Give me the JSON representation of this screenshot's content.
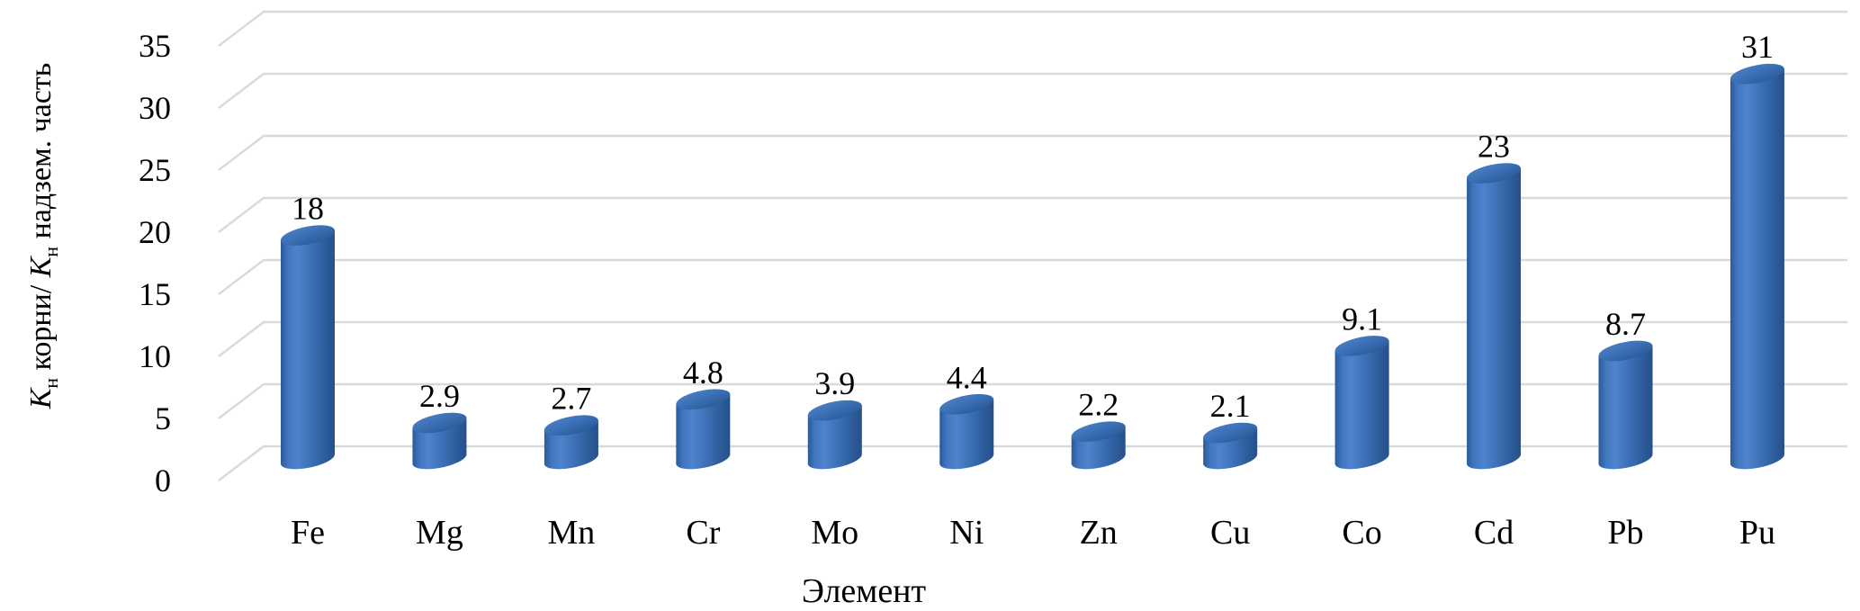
{
  "chart_data": {
    "type": "bar",
    "subtype": "cylinder-3d",
    "title": "",
    "xlabel": "Элемент",
    "ylabel": "Кн корни/ Кн надзем. часть",
    "ylabel_parts": {
      "k1": "К",
      "sub1": "н",
      "mid": " корни/ ",
      "k2": "К",
      "sub2": "н",
      "tail": " надзем. часть"
    },
    "categories": [
      "Fe",
      "Mg",
      "Mn",
      "Cr",
      "Mo",
      "Ni",
      "Zn",
      "Cu",
      "Co",
      "Cd",
      "Pb",
      "Pu"
    ],
    "values": [
      18,
      2.9,
      2.7,
      4.8,
      3.9,
      4.4,
      2.2,
      2.1,
      9.1,
      23,
      8.7,
      31
    ],
    "value_labels": [
      "18",
      "2.9",
      "2.7",
      "4.8",
      "3.9",
      "4.4",
      "2.2",
      "2.1",
      "9.1",
      "23",
      "8.7",
      "31"
    ],
    "y_ticks": [
      0,
      5,
      10,
      15,
      20,
      25,
      30,
      35
    ],
    "ylim": [
      0,
      35
    ],
    "grid": true,
    "legend": false,
    "colors": {
      "bar_main": "#3A6FB5",
      "bar_light": "#4F83CC",
      "bar_dark": "#26508A",
      "grid_line": "#D9D9D9",
      "text": "#000000",
      "background": "#FFFFFF"
    }
  }
}
